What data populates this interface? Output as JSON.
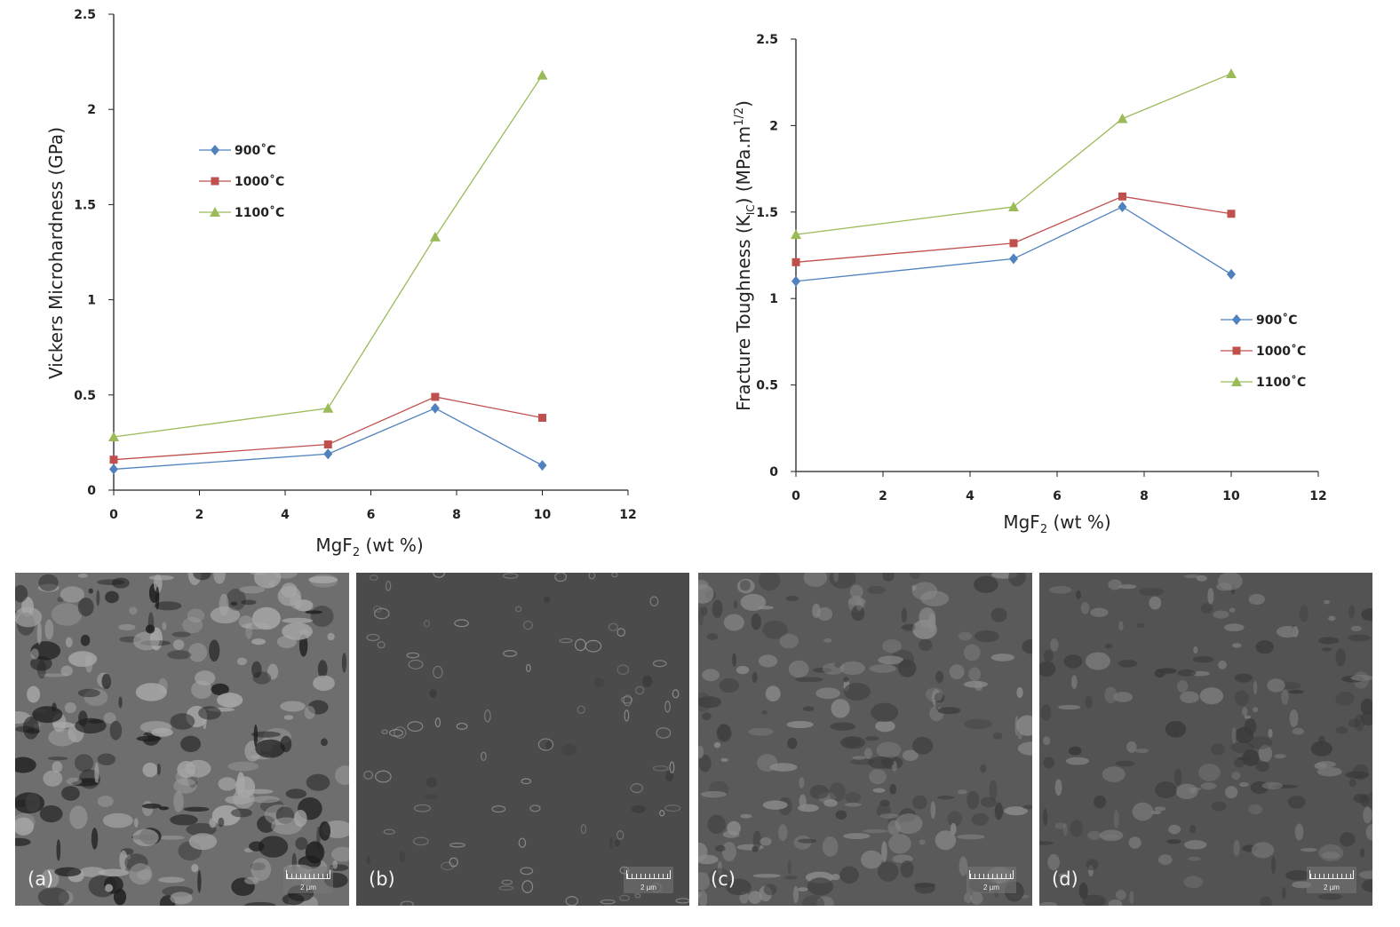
{
  "chart_data": [
    {
      "type": "line",
      "title": "",
      "xlabel": {
        "main": "MgF",
        "sub": "2",
        "rest": " (wt %)"
      },
      "ylabel": "Vickers Microhardness (GPa)",
      "xlim": [
        0,
        12
      ],
      "ylim": [
        0,
        2.5
      ],
      "xticks": [
        "0",
        "2",
        "4",
        "6",
        "8",
        "10",
        "12"
      ],
      "yticks": [
        "0",
        "0.5",
        "1",
        "1.5",
        "2",
        "2.5"
      ],
      "x": [
        0,
        5,
        7.5,
        10
      ],
      "grid": false,
      "legend_placement": "upper-left",
      "series": [
        {
          "name": "900˚C",
          "color": "#4f81bd",
          "marker": "diamond",
          "values": [
            0.11,
            0.19,
            0.43,
            0.13
          ]
        },
        {
          "name": "1000˚C",
          "color": "#c0504d",
          "marker": "square",
          "values": [
            0.16,
            0.24,
            0.49,
            0.38
          ]
        },
        {
          "name": "1100˚C",
          "color": "#9bbb59",
          "marker": "triangle",
          "values": [
            0.28,
            0.43,
            1.33,
            2.18
          ]
        }
      ]
    },
    {
      "type": "line",
      "title": "",
      "xlabel": {
        "main": "MgF",
        "sub": "2",
        "rest": " (wt %)"
      },
      "ylabel": {
        "a": "Fracture Toughness (K",
        "sub": "IC",
        "b": ") (MPa.m",
        "sup": "1/2",
        "c": ")"
      },
      "xlim": [
        0,
        12
      ],
      "ylim": [
        0,
        2.5
      ],
      "xticks": [
        "0",
        "2",
        "4",
        "6",
        "8",
        "10",
        "12"
      ],
      "yticks": [
        "0",
        "0.5",
        "1",
        "1.5",
        "2",
        "2.5"
      ],
      "x": [
        0,
        5,
        7.5,
        10
      ],
      "grid": false,
      "legend_placement": "right",
      "series": [
        {
          "name": "900˚C",
          "color": "#4f81bd",
          "marker": "diamond",
          "values": [
            1.1,
            1.23,
            1.53,
            1.14
          ]
        },
        {
          "name": "1000˚C",
          "color": "#c0504d",
          "marker": "square",
          "values": [
            1.21,
            1.32,
            1.59,
            1.49
          ]
        },
        {
          "name": "1100˚C",
          "color": "#9bbb59",
          "marker": "triangle",
          "values": [
            1.37,
            1.53,
            2.04,
            2.3
          ]
        }
      ]
    }
  ],
  "micrographs": [
    {
      "label": "(a)",
      "scale": "2 µm"
    },
    {
      "label": "(b)",
      "scale": "2 µm"
    },
    {
      "label": "(c)",
      "scale": "2 µm"
    },
    {
      "label": "(d)",
      "scale": "2 µm"
    }
  ]
}
